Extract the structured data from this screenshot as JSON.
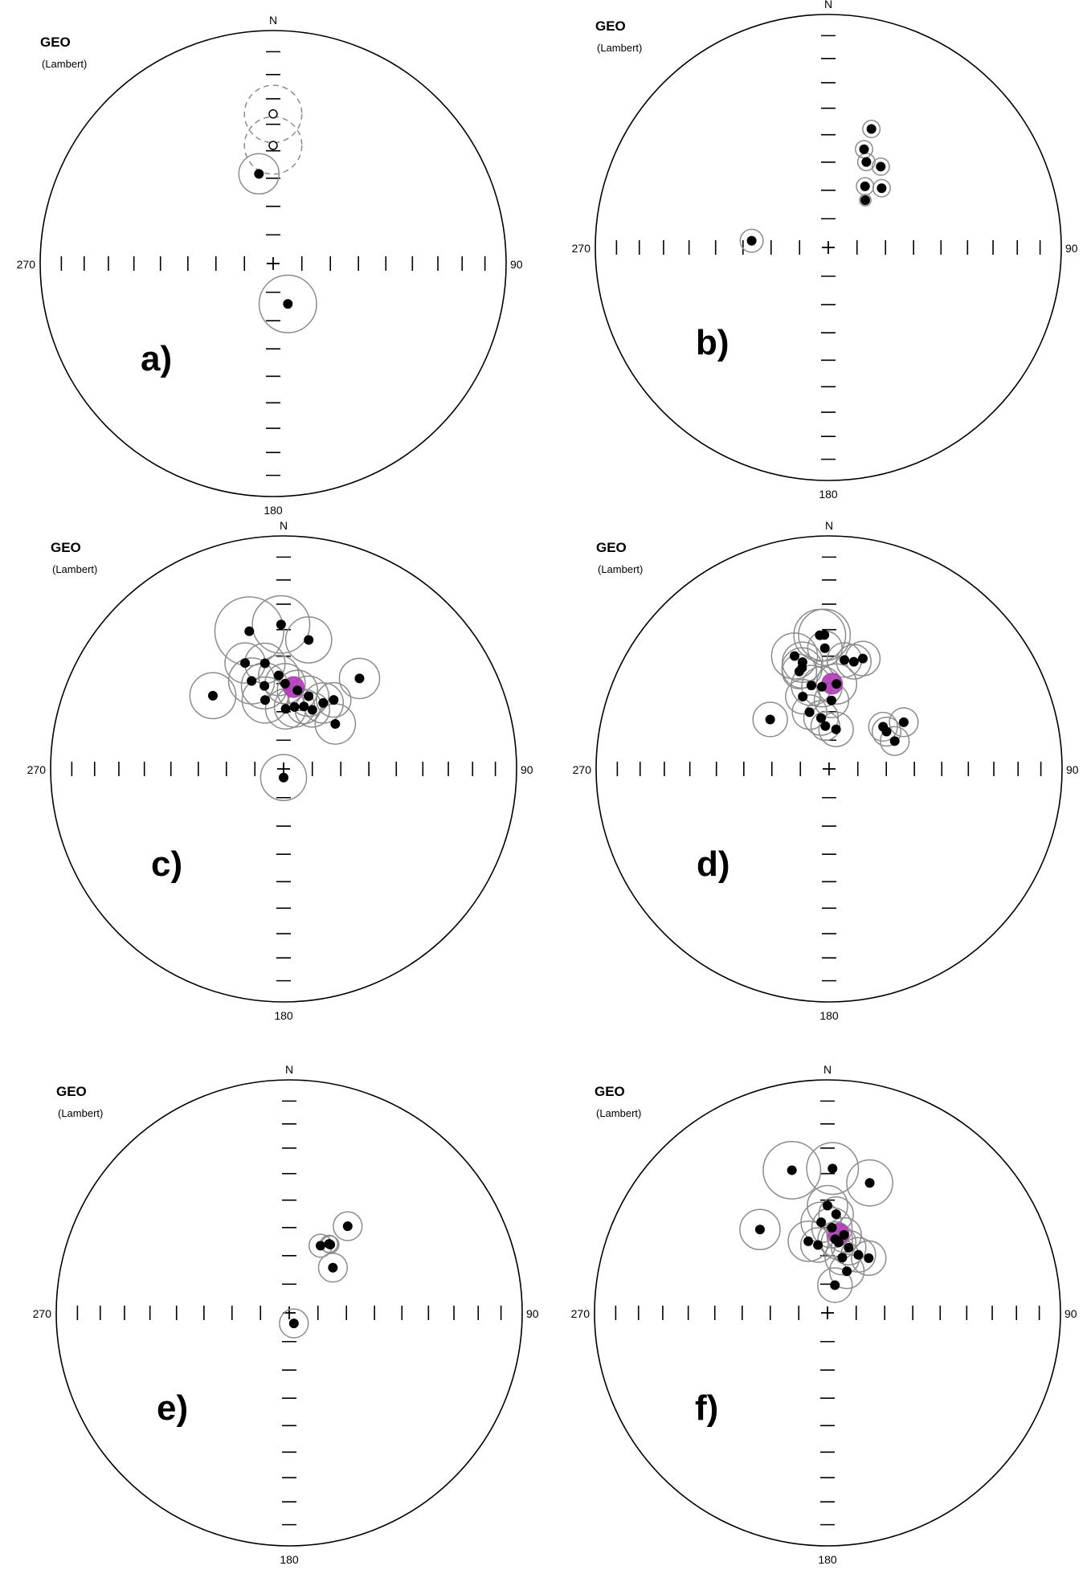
{
  "projection_label": "GEO",
  "projection_sublabel": "(Lambert)",
  "colors": {
    "outline": "#000000",
    "circle": "#8c8c8c",
    "dashed_circle": "#8c8c8c",
    "mean": "#b13ab8"
  },
  "chart_data": [
    {
      "type": "scatter",
      "subtype": "equal-area stereonet",
      "panel_label": "a)",
      "label_north": "N",
      "label_east": "90",
      "label_south": "180",
      "label_west": "270",
      "points": [
        {
          "dec": 0,
          "inc": 36,
          "a95": 10,
          "polarity": "up",
          "style": "dashed"
        },
        {
          "dec": 0,
          "inc": 48,
          "a95": 10,
          "polarity": "up",
          "style": "dashed"
        },
        {
          "dec": 351,
          "inc": 58,
          "a95": 7,
          "polarity": "down",
          "style": "solid"
        },
        {
          "dec": 160,
          "inc": 75,
          "a95": 10,
          "polarity": "down",
          "style": "solid"
        }
      ],
      "mean": null
    },
    {
      "type": "scatter",
      "subtype": "equal-area stereonet",
      "panel_label": "b)",
      "label_north": "N",
      "label_east": "90",
      "label_south": "180",
      "label_west": "270",
      "points": [
        {
          "dec": 275,
          "inc": 63,
          "a95": 4,
          "polarity": "down",
          "style": "solid"
        },
        {
          "dec": 20,
          "inc": 45,
          "a95": 3,
          "polarity": "down",
          "style": "solid"
        },
        {
          "dec": 20,
          "inc": 53,
          "a95": 3,
          "polarity": "down",
          "style": "solid"
        },
        {
          "dec": 24,
          "inc": 57,
          "a95": 3,
          "polarity": "down",
          "style": "solid"
        },
        {
          "dec": 33,
          "inc": 56,
          "a95": 3,
          "polarity": "down",
          "style": "solid"
        },
        {
          "dec": 31,
          "inc": 65,
          "a95": 3,
          "polarity": "down",
          "style": "solid"
        },
        {
          "dec": 42,
          "inc": 62,
          "a95": 3,
          "polarity": "down",
          "style": "solid"
        },
        {
          "dec": 38,
          "inc": 69,
          "a95": 2,
          "polarity": "down",
          "style": "solid"
        }
      ],
      "mean": null
    },
    {
      "type": "scatter",
      "subtype": "equal-area stereonet",
      "panel_label": "c)",
      "label_north": "N",
      "label_east": "90",
      "label_south": "180",
      "label_west": "270",
      "points": [
        {
          "dec": 346,
          "inc": 39,
          "a95": 12
        },
        {
          "dec": 359,
          "inc": 38,
          "a95": 10
        },
        {
          "dec": 11,
          "inc": 43,
          "a95": 8
        },
        {
          "dec": 316,
          "inc": 54,
          "a95": 8
        },
        {
          "dec": 340,
          "inc": 50,
          "a95": 7
        },
        {
          "dec": 350,
          "inc": 52,
          "a95": 7
        },
        {
          "dec": 40,
          "inc": 48,
          "a95": 7
        },
        {
          "dec": 340,
          "inc": 57,
          "a95": 8
        },
        {
          "dec": 357,
          "inc": 57,
          "a95": 7
        },
        {
          "dec": 347,
          "inc": 60,
          "a95": 8
        },
        {
          "dec": 1,
          "inc": 60,
          "a95": 7
        },
        {
          "dec": 345,
          "inc": 65,
          "a95": 8
        },
        {
          "dec": 10,
          "inc": 62,
          "a95": 7
        },
        {
          "dec": 19,
          "inc": 63,
          "a95": 7
        },
        {
          "dec": 31,
          "inc": 63,
          "a95": 7
        },
        {
          "dec": 36,
          "inc": 60,
          "a95": 6
        },
        {
          "dec": 18,
          "inc": 67,
          "a95": 6
        },
        {
          "dec": 26,
          "inc": 67,
          "a95": 6
        },
        {
          "dec": 10,
          "inc": 68,
          "a95": 7
        },
        {
          "dec": 2,
          "inc": 69,
          "a95": 7
        },
        {
          "dec": 49,
          "inc": 66,
          "a95": 7
        },
        {
          "dec": 180,
          "inc": 87,
          "a95": 8
        }
      ],
      "mean": {
        "dec": 7,
        "inc": 61,
        "a95": 2.5
      }
    },
    {
      "type": "scatter",
      "subtype": "equal-area stereonet",
      "panel_label": "d)",
      "label_north": "N",
      "label_east": "90",
      "label_south": "180",
      "label_west": "270",
      "points": [
        {
          "dec": 356,
          "inc": 42,
          "a95": 9
        },
        {
          "dec": 358,
          "inc": 42,
          "a95": 9
        },
        {
          "dec": 343,
          "inc": 48,
          "a95": 8
        },
        {
          "dec": 346,
          "inc": 51,
          "a95": 7
        },
        {
          "dec": 345,
          "inc": 53,
          "a95": 7
        },
        {
          "dec": 343,
          "inc": 54,
          "a95": 6
        },
        {
          "dec": 358,
          "inc": 47,
          "a95": 6
        },
        {
          "dec": 8,
          "inc": 51,
          "a95": 6
        },
        {
          "dec": 17,
          "inc": 49,
          "a95": 6
        },
        {
          "dec": 13,
          "inc": 51,
          "a95": 6
        },
        {
          "dec": 310,
          "inc": 63,
          "a95": 6
        },
        {
          "dec": 348,
          "inc": 60,
          "a95": 7
        },
        {
          "dec": 355,
          "inc": 61,
          "a95": 7
        },
        {
          "dec": 5,
          "inc": 60,
          "a95": 7
        },
        {
          "dec": 340,
          "inc": 63,
          "a95": 6
        },
        {
          "dec": 341,
          "inc": 69,
          "a95": 6
        },
        {
          "dec": 351,
          "inc": 72,
          "a95": 6
        },
        {
          "dec": 355,
          "inc": 75,
          "a95": 5
        },
        {
          "dec": 52,
          "inc": 66,
          "a95": 5
        },
        {
          "dec": 57,
          "inc": 66,
          "a95": 5
        },
        {
          "dec": 58,
          "inc": 59,
          "a95": 5
        },
        {
          "dec": 67,
          "inc": 65,
          "a95": 5
        },
        {
          "dec": 2,
          "inc": 66,
          "a95": 6
        },
        {
          "dec": 10,
          "inc": 76,
          "a95": 6
        }
      ],
      "mean": {
        "dec": 2,
        "inc": 60,
        "a95": 2
      }
    },
    {
      "type": "scatter",
      "subtype": "equal-area stereonet",
      "panel_label": "e)",
      "label_north": "N",
      "label_east": "90",
      "label_south": "180",
      "label_west": "270",
      "points": [
        {
          "dec": 34,
          "inc": 53,
          "a95": 5
        },
        {
          "dec": 25,
          "inc": 64,
          "a95": 4
        },
        {
          "dec": 30,
          "inc": 62,
          "a95": 3
        },
        {
          "dec": 31,
          "inc": 62,
          "a95": 3
        },
        {
          "dec": 44,
          "inc": 68,
          "a95": 5
        },
        {
          "dec": 156,
          "inc": 86,
          "a95": 5
        }
      ],
      "mean": null
    },
    {
      "type": "scatter",
      "subtype": "equal-area stereonet",
      "panel_label": "f)",
      "label_north": "N",
      "label_east": "90",
      "label_south": "180",
      "label_west": "270",
      "points": [
        {
          "dec": 346,
          "inc": 37,
          "a95": 10
        },
        {
          "dec": 2,
          "inc": 38,
          "a95": 9
        },
        {
          "dec": 18,
          "inc": 41,
          "a95": 8
        },
        {
          "dec": 321,
          "inc": 52,
          "a95": 7
        },
        {
          "dec": 0,
          "inc": 52,
          "a95": 7
        },
        {
          "dec": 356,
          "inc": 58,
          "a95": 7
        },
        {
          "dec": 3,
          "inc": 60,
          "a95": 7
        },
        {
          "dec": 5,
          "inc": 55,
          "a95": 6
        },
        {
          "dec": 345,
          "inc": 64,
          "a95": 7
        },
        {
          "dec": 352,
          "inc": 66,
          "a95": 6
        },
        {
          "dec": 6,
          "inc": 64,
          "a95": 6
        },
        {
          "dec": 12,
          "inc": 62,
          "a95": 6
        },
        {
          "dec": 9,
          "inc": 65,
          "a95": 6
        },
        {
          "dec": 18,
          "inc": 66,
          "a95": 6
        },
        {
          "dec": 28,
          "inc": 67,
          "a95": 6
        },
        {
          "dec": 37,
          "inc": 66,
          "a95": 6
        },
        {
          "dec": 15,
          "inc": 70,
          "a95": 6
        },
        {
          "dec": 25,
          "inc": 74,
          "a95": 6
        },
        {
          "dec": 15,
          "inc": 80,
          "a95": 6
        }
      ],
      "mean": {
        "dec": 8,
        "inc": 62,
        "a95": 2.5
      }
    }
  ]
}
